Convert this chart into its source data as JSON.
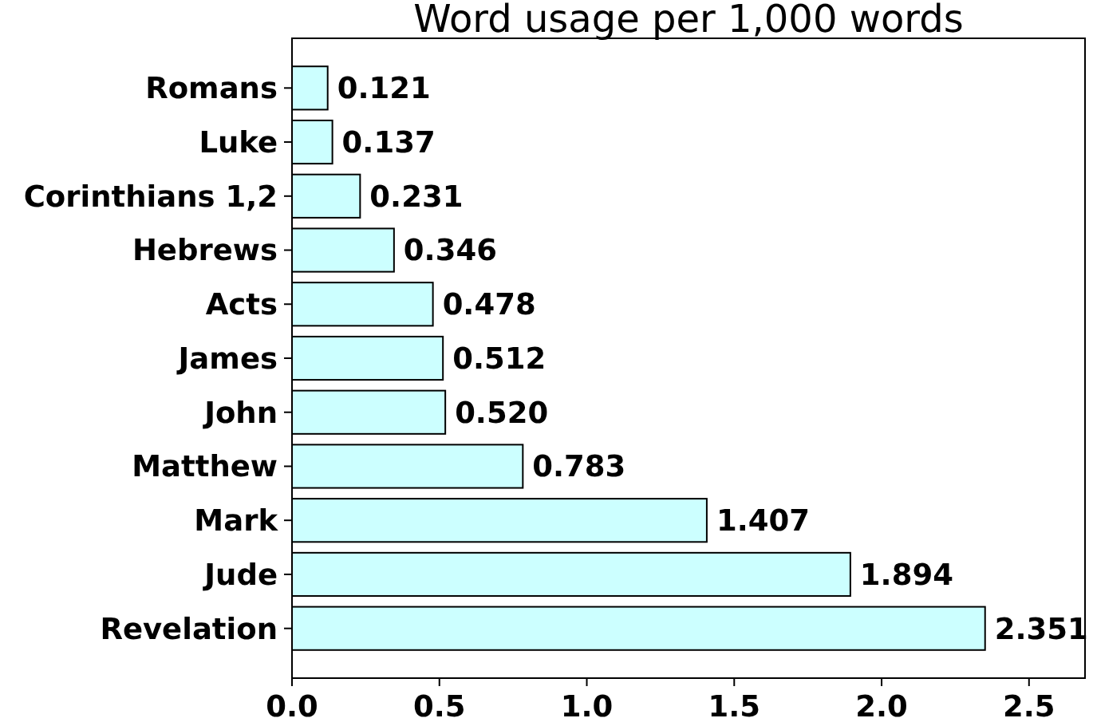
{
  "chart_data": {
    "type": "bar",
    "orientation": "horizontal",
    "title": "Word usage per 1,000 words",
    "categories": [
      "Romans",
      "Luke",
      "Corinthians 1,2",
      "Hebrews",
      "Acts",
      "James",
      "John",
      "Matthew",
      "Mark",
      "Jude",
      "Revelation"
    ],
    "values": [
      0.121,
      0.137,
      0.231,
      0.346,
      0.478,
      0.512,
      0.52,
      0.783,
      1.407,
      1.894,
      2.351
    ],
    "value_labels": [
      "0.121",
      "0.137",
      "0.231",
      "0.346",
      "0.478",
      "0.512",
      "0.520",
      "0.783",
      "1.407",
      "1.894",
      "2.351"
    ],
    "color": "#ccffff",
    "xlim": [
      0,
      2.69
    ],
    "xticks": [
      {
        "value": 0,
        "label": "0.0"
      },
      0.5,
      {
        "value": 1,
        "label": "1.0"
      },
      1.5,
      {
        "value": 2,
        "label": "2.0"
      },
      2.5
    ],
    "grid": false
  }
}
